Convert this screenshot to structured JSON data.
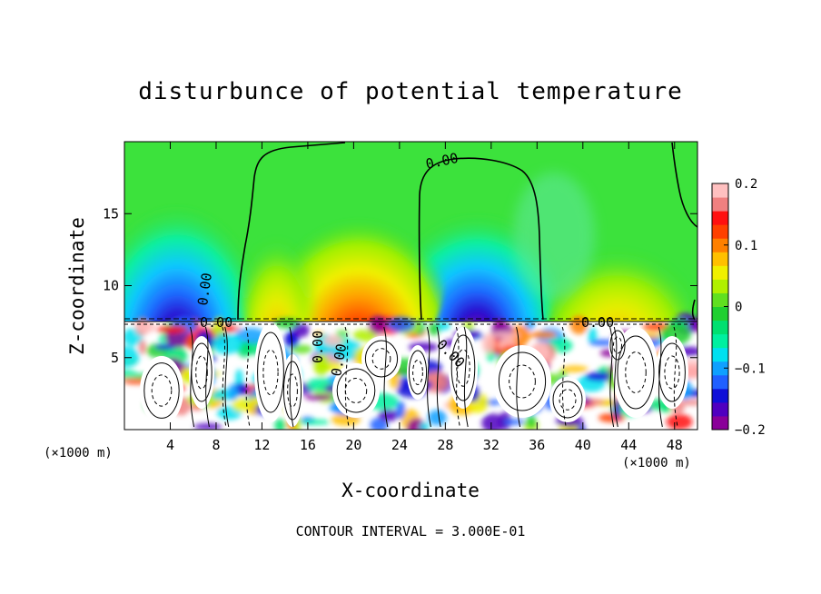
{
  "chart_data": {
    "type": "heatmap",
    "title": "disturbunce of potential temperature",
    "xlabel": "X-coordinate",
    "ylabel": "Z-coordinate",
    "x_unit": "(×1000 m)",
    "xlim": [
      0,
      50
    ],
    "ylim": [
      0,
      20
    ],
    "x_ticks": [
      4,
      8,
      12,
      16,
      20,
      24,
      28,
      32,
      36,
      40,
      44,
      48
    ],
    "y_ticks": [
      5,
      10,
      15
    ],
    "colorbar": {
      "range": [
        -0.2,
        0.2
      ],
      "tick_values": [
        0.2,
        0.1,
        0,
        -0.1,
        -0.2
      ],
      "tick_labels": [
        "0.2",
        "0.1",
        "0",
        "−0.1",
        "−0.2"
      ],
      "colors": [
        "#8a0099",
        "#5000c0",
        "#1010d8",
        "#2060ff",
        "#0fa0ff",
        "#00e0f0",
        "#00f0a0",
        "#00e070",
        "#20d030",
        "#60e020",
        "#b0f000",
        "#f0f000",
        "#ffc000",
        "#ff8000",
        "#ff4000",
        "#ff1010",
        "#f08080",
        "#ffc0c0"
      ]
    },
    "contour_labels": [
      "0.00",
      "0.00",
      "0.00",
      "0.00",
      "0.00",
      "0.00",
      "0.00"
    ],
    "footer": "CONTOUR INTERVAL = 3.000E-01"
  }
}
